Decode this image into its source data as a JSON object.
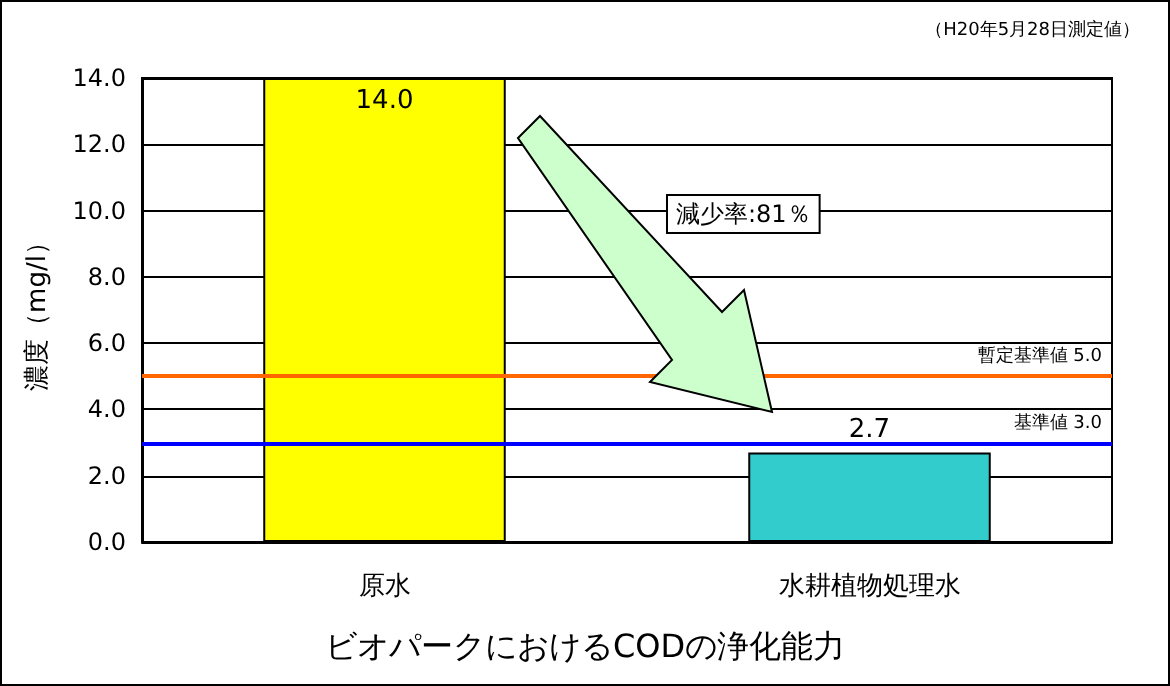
{
  "chart_data": {
    "type": "bar",
    "title": "ビオパークにおけるCODの浄化能力",
    "ylabel": "濃度（mg/l）",
    "categories": [
      "原水",
      "水耕植物処理水"
    ],
    "values": [
      14.0,
      2.7
    ],
    "colors": [
      "#ffff00",
      "#33cccc"
    ],
    "value_labels": [
      "14.0",
      "2.7"
    ],
    "ylim": [
      0,
      14
    ],
    "yticks": [
      {
        "value": 0,
        "label": "0.0"
      },
      {
        "value": 2,
        "label": "2.0"
      },
      {
        "value": 4,
        "label": "4.0"
      },
      {
        "value": 6,
        "label": "6.0"
      },
      {
        "value": 8,
        "label": "8.0"
      },
      {
        "value": 10,
        "label": "10.0"
      },
      {
        "value": 12,
        "label": "12.0"
      },
      {
        "value": 14,
        "label": "14.0"
      }
    ],
    "grid": "y",
    "ref_lines": [
      {
        "axis": "y",
        "value": 5.0,
        "label": "暫定基準値 5.0",
        "color": "#ff6600"
      },
      {
        "axis": "y",
        "value": 3.0,
        "label": "基準値 3.0",
        "color": "#0000ff"
      }
    ],
    "annotations": [
      "（H20年5月28日測定値）",
      "減少率:81％"
    ]
  }
}
